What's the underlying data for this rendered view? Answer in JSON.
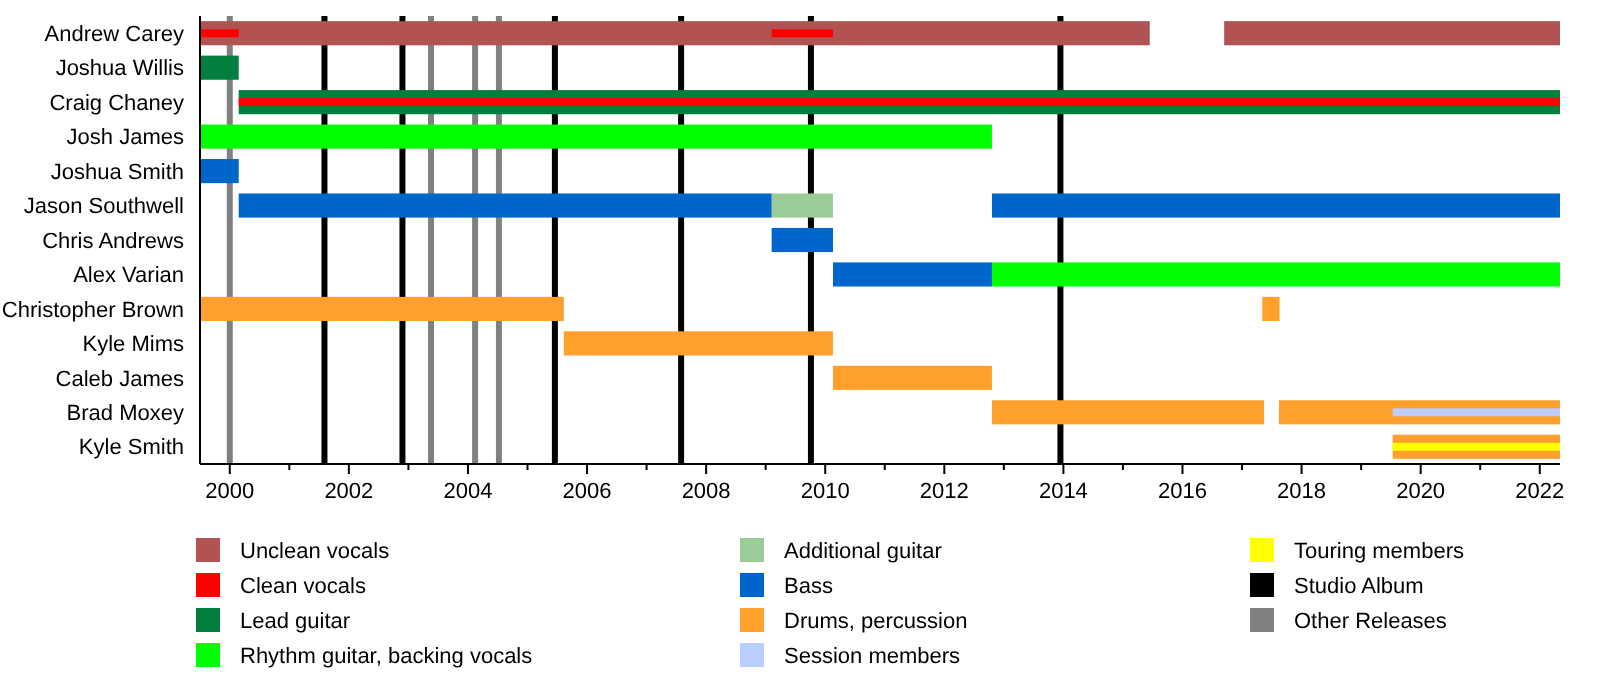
{
  "chart_data": {
    "type": "bar",
    "orientation": "horizontal",
    "categories": [
      "Andrew Carey",
      "Joshua Willis",
      "Craig Chaney",
      "Josh James",
      "Joshua Smith",
      "Jason Southwell",
      "Chris Andrews",
      "Alex Varian",
      "Christopher Brown",
      "Kyle Mims",
      "Caleb James",
      "Brad Moxey",
      "Kyle Smith"
    ],
    "series": [
      {
        "name": "Unclean vocals",
        "color": "#b35252",
        "base": [
          1999.5,
          null,
          null,
          null,
          null,
          null,
          null,
          null,
          null,
          null,
          null,
          null,
          null
        ],
        "values": [
          15.95,
          null,
          null,
          null,
          null,
          null,
          null,
          null,
          null,
          null,
          null,
          null,
          null
        ]
      },
      {
        "color": "#b35252",
        "base": [
          2016.7,
          null,
          null,
          null,
          null,
          null,
          null,
          null,
          null,
          null,
          null,
          null,
          null
        ],
        "values": [
          5.64,
          null,
          null,
          null,
          null,
          null,
          null,
          null,
          null,
          null,
          null,
          null,
          null
        ]
      },
      {
        "name": "Clean vocals",
        "color": "#ff0000",
        "base": [
          1999.5,
          null,
          null,
          null,
          null,
          null,
          null,
          null,
          null,
          null,
          null,
          null,
          null
        ],
        "values": [
          0.65,
          null,
          null,
          null,
          null,
          null,
          null,
          null,
          null,
          null,
          null,
          null,
          null
        ]
      },
      {
        "name": "Lead guitar",
        "color": "#007f3f",
        "base": [
          null,
          1999.5,
          2000.15,
          null,
          null,
          null,
          null,
          null,
          null,
          null,
          null,
          null,
          null
        ],
        "values": [
          null,
          0.65,
          22.19,
          null,
          null,
          null,
          null,
          null,
          null,
          null,
          null,
          null,
          null
        ]
      },
      {
        "color": "#ff0000",
        "base": [
          2009.1,
          null,
          2000.15,
          null,
          null,
          null,
          null,
          null,
          null,
          null,
          null,
          null,
          null
        ],
        "values": [
          1.03,
          null,
          22.19,
          null,
          null,
          null,
          null,
          null,
          null,
          null,
          null,
          null,
          null
        ]
      },
      {
        "name": "Rhythm guitar, backing vocals",
        "color": "#00ff00",
        "base": [
          null,
          null,
          null,
          1999.5,
          null,
          null,
          null,
          2012.8,
          null,
          null,
          null,
          null,
          null
        ],
        "values": [
          null,
          null,
          null,
          13.3,
          null,
          null,
          null,
          9.54,
          null,
          null,
          null,
          null,
          null
        ]
      },
      {
        "name": "Additional guitar",
        "color": "#99cc99",
        "base": [
          null,
          null,
          null,
          null,
          null,
          2009.1,
          null,
          null,
          null,
          null,
          null,
          null,
          null
        ],
        "values": [
          null,
          null,
          null,
          null,
          null,
          1.03,
          null,
          null,
          null,
          null,
          null,
          null,
          null
        ]
      },
      {
        "name": "Bass",
        "color": "#0066cc",
        "base": [
          null,
          null,
          null,
          null,
          1999.5,
          2000.15,
          2009.1,
          2010.13,
          null,
          null,
          null,
          null,
          null
        ],
        "values": [
          null,
          null,
          null,
          null,
          0.65,
          8.95,
          1.03,
          2.67,
          null,
          null,
          null,
          null,
          null
        ]
      },
      {
        "color": "#0066cc",
        "base": [
          null,
          null,
          null,
          null,
          null,
          2012.8,
          null,
          null,
          null,
          null,
          null,
          null,
          null
        ],
        "values": [
          null,
          null,
          null,
          null,
          null,
          9.54,
          null,
          null,
          null,
          null,
          null,
          null,
          null
        ]
      },
      {
        "name": "Drums, percussion",
        "color": "#ffa02c",
        "base": [
          null,
          null,
          null,
          null,
          null,
          null,
          null,
          null,
          1999.5,
          2005.61,
          2010.13,
          2012.8,
          2019.53
        ],
        "values": [
          null,
          null,
          null,
          null,
          null,
          null,
          null,
          null,
          6.11,
          4.52,
          2.67,
          4.57,
          2.81
        ]
      },
      {
        "color": "#ffa02c",
        "base": [
          null,
          null,
          null,
          null,
          null,
          null,
          null,
          null,
          2017.34,
          null,
          null,
          2017.62,
          null
        ],
        "values": [
          null,
          null,
          null,
          null,
          null,
          null,
          null,
          null,
          0.29,
          null,
          null,
          4.72,
          null
        ]
      },
      {
        "name": "Session members",
        "color": "#bbccff",
        "base": [
          null,
          null,
          null,
          null,
          null,
          null,
          null,
          null,
          null,
          null,
          null,
          2019.53,
          null
        ],
        "values": [
          null,
          null,
          null,
          null,
          null,
          null,
          null,
          null,
          null,
          null,
          null,
          2.81,
          null
        ]
      },
      {
        "name": "Touring members",
        "color": "#ffff00",
        "base": [
          null,
          null,
          null,
          null,
          null,
          null,
          null,
          null,
          null,
          null,
          null,
          null,
          2019.53
        ],
        "values": [
          null,
          null,
          null,
          null,
          null,
          null,
          null,
          null,
          null,
          null,
          null,
          null,
          2.81
        ]
      }
    ],
    "xlim": [
      1999.5,
      2022.34
    ],
    "xticks": [
      2000,
      {
        "value": 2001,
        "label": null
      },
      2002,
      {
        "value": 2003,
        "label": null
      },
      2004,
      {
        "value": 2005,
        "label": null
      },
      2006,
      {
        "value": 2007,
        "label": null
      },
      2008,
      {
        "value": 2009,
        "label": null
      },
      2010,
      {
        "value": 2011,
        "label": null
      },
      2012,
      {
        "value": 2013,
        "label": null
      },
      2014,
      {
        "value": 2015,
        "label": null
      },
      2016,
      {
        "value": 2017,
        "label": null
      },
      2018,
      {
        "value": 2019,
        "label": null
      },
      2020,
      {
        "value": 2021,
        "label": null
      },
      2022
    ],
    "ref_lines": [
      {
        "axis": "x",
        "value": 2001.59,
        "label": "Studio Album",
        "color": "#000000"
      },
      {
        "axis": "x",
        "value": 2002.9,
        "color": "#000000"
      },
      {
        "axis": "x",
        "value": 2005.46,
        "color": "#000000"
      },
      {
        "axis": "x",
        "value": 2007.58,
        "color": "#000000"
      },
      {
        "axis": "x",
        "value": 2009.76,
        "color": "#000000"
      },
      {
        "axis": "x",
        "value": 2013.95,
        "color": "#000000"
      },
      {
        "axis": "x",
        "value": 2000.0,
        "label": "Other Releases",
        "color": "#808080"
      },
      {
        "axis": "x",
        "value": 2003.38,
        "color": "#808080"
      },
      {
        "axis": "x",
        "value": 2004.12,
        "color": "#808080"
      },
      {
        "axis": "x",
        "value": 2004.52,
        "color": "#808080"
      }
    ],
    "grid": false,
    "legend": "bottom"
  }
}
